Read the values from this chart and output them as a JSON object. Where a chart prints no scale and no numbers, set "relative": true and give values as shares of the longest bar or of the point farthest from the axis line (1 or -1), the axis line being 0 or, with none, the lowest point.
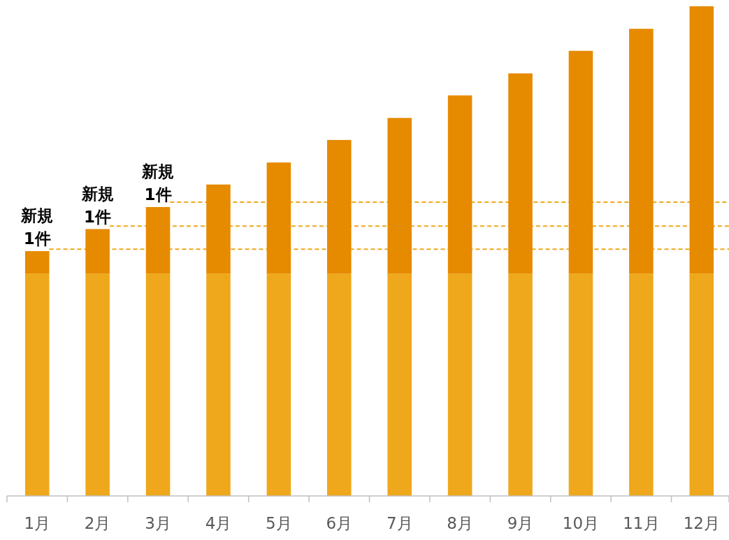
{
  "chart_data": {
    "type": "bar",
    "stacked": true,
    "relative": true,
    "categories": [
      "1月",
      "2月",
      "3月",
      "4月",
      "5月",
      "6月",
      "7月",
      "8月",
      "9月",
      "10月",
      "11月",
      "12月"
    ],
    "series": [
      {
        "color": "#efa81b",
        "values": [
          0.454,
          0.454,
          0.454,
          0.454,
          0.454,
          0.454,
          0.454,
          0.454,
          0.454,
          0.454,
          0.454,
          0.454
        ]
      },
      {
        "color": "#e68a00",
        "values": [
          0.046,
          0.091,
          0.136,
          0.182,
          0.227,
          0.273,
          0.318,
          0.364,
          0.409,
          0.455,
          0.5,
          0.546
        ]
      }
    ],
    "ref_lines": [
      {
        "axis": "y",
        "value": 0.504,
        "color": "#efa81b",
        "line_style": "dashed"
      },
      {
        "axis": "y",
        "value": 0.551,
        "color": "#efa81b",
        "line_style": "dashed"
      },
      {
        "axis": "y",
        "value": 0.6,
        "color": "#efa81b",
        "line_style": "dashed"
      }
    ],
    "annotations": [
      {
        "text": "新規\n1件",
        "x": "1月",
        "y": 0.5
      },
      {
        "text": "新規\n1件",
        "x": "2月",
        "y": 0.545
      },
      {
        "text": "新規\n1件",
        "x": "3月",
        "y": 0.59
      }
    ]
  }
}
